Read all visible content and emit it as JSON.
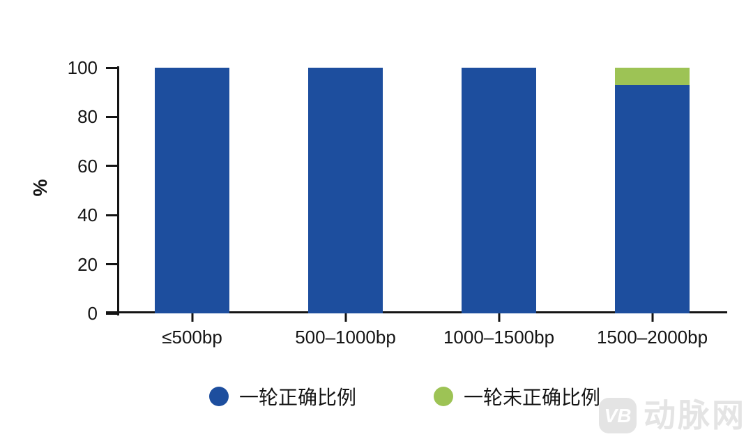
{
  "chart_data": {
    "type": "bar",
    "stacked": true,
    "title": "",
    "categories": [
      "≤500bp",
      "500–1000bp",
      "1000–1500bp",
      "1500–2000bp"
    ],
    "series": [
      {
        "name": "一轮正确比例",
        "color": "#1d4e9e",
        "values": [
          100,
          100,
          100,
          93
        ]
      },
      {
        "name": "一轮未正确比例",
        "color": "#9dc355",
        "values": [
          0,
          0,
          0,
          7
        ]
      }
    ],
    "xlabel": "",
    "ylabel": "%",
    "ylim": [
      0,
      100
    ],
    "yticks": [
      0,
      20,
      40,
      60,
      80,
      100
    ],
    "grid": false,
    "legend_position": "bottom"
  },
  "watermark": {
    "logo_text": "VB",
    "brand_text": "动脉网",
    "color": "#e4e4e4"
  },
  "colors": {
    "axis": "#141414",
    "background": "#ffffff",
    "bar_blue": "#1d4e9e",
    "bar_green": "#9dc355"
  }
}
